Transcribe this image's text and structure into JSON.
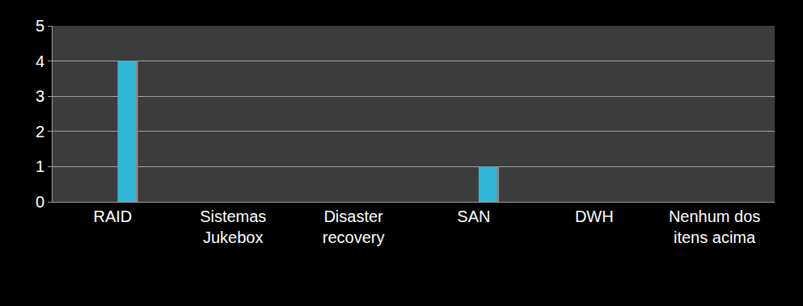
{
  "chart_data": {
    "type": "bar",
    "categories": [
      "RAID",
      "Sistemas Jukebox",
      "Disaster recovery",
      "SAN",
      "DWH",
      "Nenhum dos itens acima"
    ],
    "values": [
      4,
      0,
      0,
      1,
      0,
      0
    ],
    "color": "#31b6d8",
    "ylim": [
      0,
      5
    ],
    "yticks": [
      0,
      1,
      2,
      3,
      4,
      5
    ],
    "grid": true
  }
}
